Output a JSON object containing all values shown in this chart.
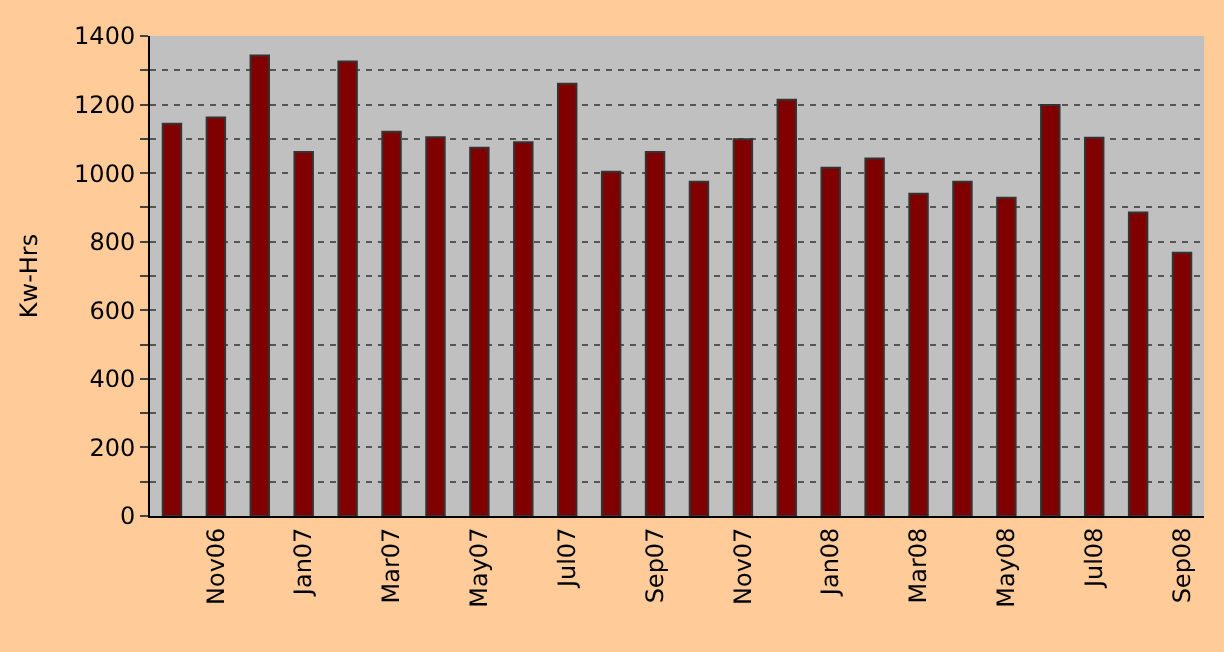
{
  "chart_data": {
    "type": "bar",
    "ylabel": "Kw-Hrs",
    "categories": [
      null,
      "Nov06",
      null,
      "Jan07",
      null,
      "Mar07",
      null,
      "May07",
      null,
      "Jul07",
      null,
      "Sep07",
      null,
      "Nov07",
      null,
      "Jan08",
      null,
      "Mar08",
      null,
      "May08",
      null,
      "Jul08",
      null,
      "Sep08"
    ],
    "values": [
      1144,
      1162,
      1343,
      1062,
      1326,
      1121,
      1105,
      1074,
      1090,
      1261,
      1004,
      1062,
      975,
      1099,
      1214,
      1016,
      1043,
      940,
      975,
      928,
      1199,
      1103,
      885,
      768
    ],
    "color": "#800000",
    "ylim": [
      0,
      1400
    ],
    "yticks": [
      0,
      {
        "value": 100,
        "label": null
      },
      200,
      {
        "value": 300,
        "label": null
      },
      400,
      {
        "value": 500,
        "label": null
      },
      600,
      {
        "value": 700,
        "label": null
      },
      800,
      {
        "value": 900,
        "label": null
      },
      1000,
      {
        "value": 1100,
        "label": null
      },
      1200,
      {
        "value": 1300,
        "label": null
      },
      1400
    ],
    "grid": "y",
    "legend": false
  }
}
